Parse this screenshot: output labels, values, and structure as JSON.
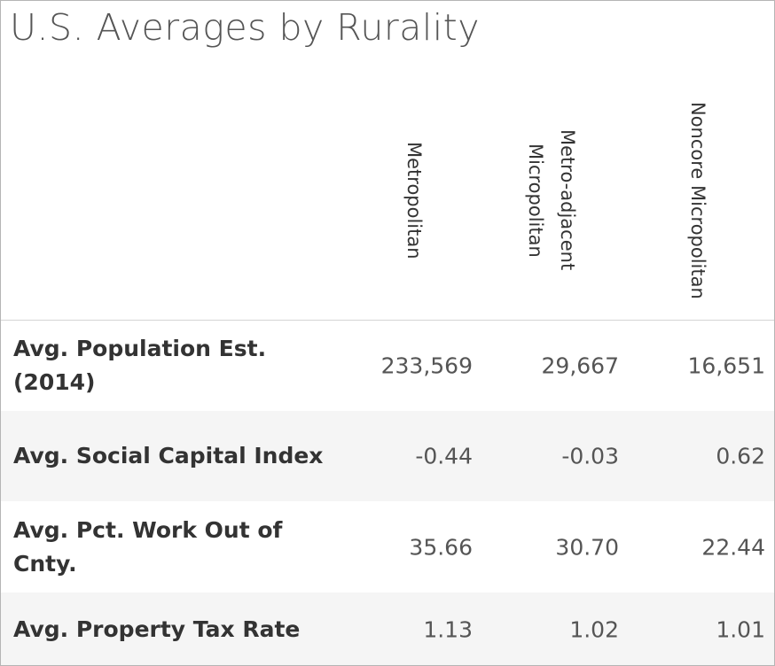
{
  "title": "U.S. Averages by Rurality",
  "table": {
    "columns": [
      "Metropolitan",
      "Metro-adjacent Micropolitan",
      "Noncore Micropolitan"
    ],
    "rows": [
      {
        "label": "Avg. Population Est. (2014)",
        "cells": [
          "233,569",
          "29,667",
          "16,651"
        ]
      },
      {
        "label": "Avg. Social Capital Index",
        "cells": [
          "-0.44",
          "-0.03",
          "0.62"
        ]
      },
      {
        "label": "Avg. Pct. Work Out of Cnty.",
        "cells": [
          "35.66",
          "30.70",
          "22.44"
        ]
      },
      {
        "label": "Avg. Property Tax Rate",
        "cells": [
          "1.13",
          "1.02",
          "1.01"
        ]
      }
    ]
  }
}
